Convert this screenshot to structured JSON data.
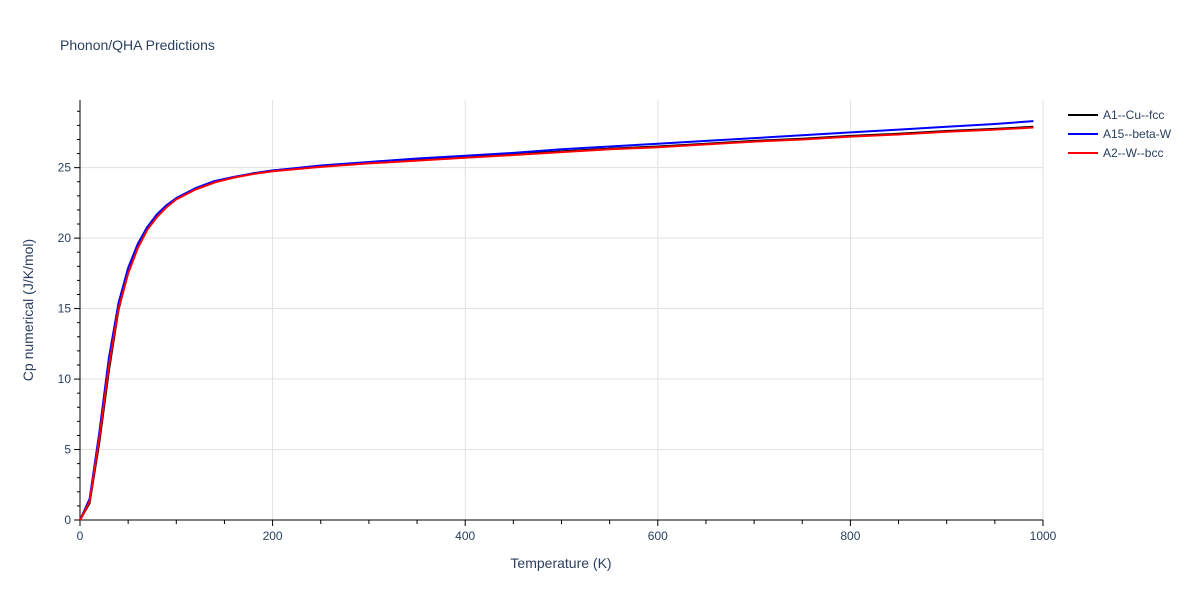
{
  "chart_data": {
    "type": "line",
    "title": "Phonon/QHA Predictions",
    "xlabel": "Temperature (K)",
    "ylabel": "Cp numerical (J/K/mol)",
    "xlim": [
      0,
      1000
    ],
    "ylim": [
      0,
      29.8
    ],
    "xticks": [
      0,
      200,
      400,
      600,
      800,
      1000
    ],
    "yticks": [
      0,
      5,
      10,
      15,
      20,
      25
    ],
    "grid": true,
    "legend_position": "top-right",
    "series": [
      {
        "name": "A1--Cu--fcc",
        "color": "#000000",
        "x": [
          0,
          10,
          20,
          30,
          40,
          50,
          60,
          70,
          80,
          90,
          100,
          120,
          140,
          160,
          180,
          200,
          250,
          300,
          350,
          400,
          450,
          500,
          550,
          600,
          650,
          700,
          750,
          800,
          850,
          900,
          950,
          990
        ],
        "y": [
          0,
          1.2,
          5.5,
          10.6,
          14.9,
          17.6,
          19.4,
          20.7,
          21.6,
          22.3,
          22.8,
          23.5,
          24.0,
          24.3,
          24.6,
          24.8,
          25.1,
          25.35,
          25.55,
          25.75,
          25.95,
          26.15,
          26.35,
          26.5,
          26.7,
          26.9,
          27.05,
          27.25,
          27.4,
          27.6,
          27.75,
          27.9
        ]
      },
      {
        "name": "A15--beta-W",
        "color": "#0000ff",
        "x": [
          0,
          10,
          20,
          30,
          40,
          50,
          60,
          70,
          80,
          90,
          100,
          120,
          140,
          160,
          180,
          200,
          250,
          300,
          350,
          400,
          450,
          500,
          550,
          600,
          650,
          700,
          750,
          800,
          850,
          900,
          950,
          990
        ],
        "y": [
          0,
          1.5,
          6.2,
          11.5,
          15.4,
          17.9,
          19.6,
          20.8,
          21.7,
          22.35,
          22.85,
          23.55,
          24.05,
          24.35,
          24.6,
          24.8,
          25.15,
          25.4,
          25.65,
          25.85,
          26.05,
          26.3,
          26.5,
          26.7,
          26.9,
          27.1,
          27.3,
          27.5,
          27.7,
          27.9,
          28.1,
          28.3
        ]
      },
      {
        "name": "A2--W--bcc",
        "color": "#ff0000",
        "x": [
          0,
          10,
          20,
          30,
          40,
          50,
          60,
          70,
          80,
          90,
          100,
          120,
          140,
          160,
          180,
          200,
          250,
          300,
          350,
          400,
          450,
          500,
          550,
          600,
          650,
          700,
          750,
          800,
          850,
          900,
          950,
          990
        ],
        "y": [
          0,
          1.3,
          5.8,
          10.9,
          15.0,
          17.5,
          19.3,
          20.6,
          21.5,
          22.2,
          22.75,
          23.45,
          23.95,
          24.3,
          24.55,
          24.75,
          25.05,
          25.3,
          25.5,
          25.7,
          25.9,
          26.1,
          26.3,
          26.45,
          26.65,
          26.85,
          27.0,
          27.2,
          27.35,
          27.55,
          27.7,
          27.85
        ]
      }
    ]
  }
}
